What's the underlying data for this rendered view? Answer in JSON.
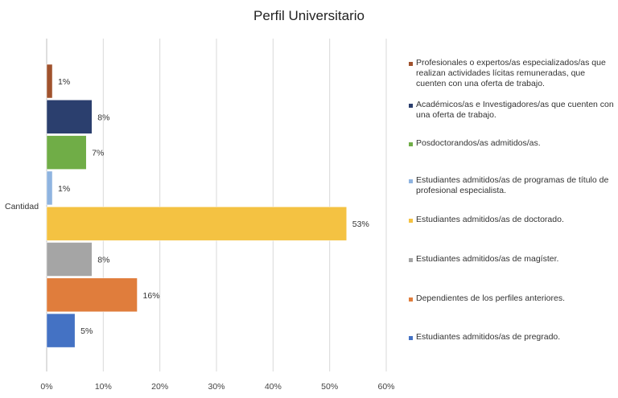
{
  "chart_data": {
    "type": "bar",
    "orientation": "horizontal",
    "title": "Perfil Universitario",
    "category_label": "Cantidad",
    "xlim": [
      0,
      0.6
    ],
    "x_ticks": [
      "0%",
      "10%",
      "20%",
      "30%",
      "40%",
      "50%",
      "60%"
    ],
    "grid": true,
    "legend_position": "right",
    "series": [
      {
        "name": "Profesionales o expertos/as especializados/as que realizan actividades lícitas remuneradas, que cuenten con una oferta de trabajo.",
        "value": 0.01,
        "label": "1%",
        "color": "#a0522d"
      },
      {
        "name": "Académicos/as e Investigadores/as que cuenten con una oferta de trabajo.",
        "value": 0.08,
        "label": "8%",
        "color": "#2b3f6e"
      },
      {
        "name": "Posdoctorandos/as admitidos/as.",
        "value": 0.07,
        "label": "7%",
        "color": "#70ad47"
      },
      {
        "name": "Estudiantes admitidos/as de programas de título de profesional especialista.",
        "value": 0.01,
        "label": "1%",
        "color": "#8fb4e0"
      },
      {
        "name": "Estudiantes admitidos/as de doctorado.",
        "value": 0.53,
        "label": "53%",
        "color": "#f4c242"
      },
      {
        "name": "Estudiantes admitidos/as de magíster.",
        "value": 0.08,
        "label": "8%",
        "color": "#a5a5a5"
      },
      {
        "name": "Dependientes de los perfiles anteriores.",
        "value": 0.16,
        "label": "16%",
        "color": "#e07d3c"
      },
      {
        "name": "Estudiantes admitidos/as de pregrado.",
        "value": 0.05,
        "label": "5%",
        "color": "#4472c4"
      }
    ]
  }
}
